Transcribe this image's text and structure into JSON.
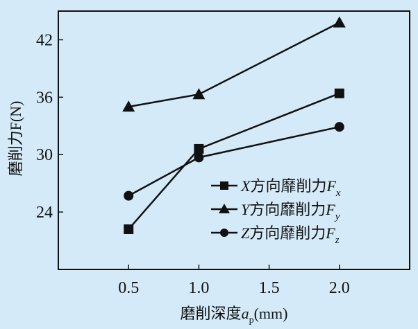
{
  "chart_data": {
    "type": "line",
    "xlabel": "磨削深度a_p(mm)",
    "xlabel_parts": {
      "main": "磨削深度",
      "var": "a",
      "sub": "p",
      "unit": "(mm)"
    },
    "ylabel": "磨削力F(N)",
    "ylabel_parts": {
      "main": "磨削力",
      "var": "F",
      "unit": "(N)"
    },
    "xlim": [
      0,
      2.5
    ],
    "ylim": [
      18,
      45
    ],
    "xticks": [
      "0.5",
      "1.0",
      "1.5",
      "2.0"
    ],
    "xtick_values": [
      0.5,
      1.0,
      1.5,
      2.0
    ],
    "yticks": [
      "24",
      "30",
      "36",
      "42"
    ],
    "ytick_values": [
      24,
      30,
      36,
      42
    ],
    "grid": false,
    "legend_position": "lower-right",
    "background_color": "#d4eaf8",
    "line_color": "#111111",
    "series": [
      {
        "name": "X方向靡削力F_x",
        "axis": "X",
        "label": "方向靡削力",
        "var": "F",
        "sub": "x",
        "marker": "square",
        "x": [
          0.5,
          1.0,
          2.0
        ],
        "values": [
          22.2,
          30.6,
          36.4
        ]
      },
      {
        "name": "Y方向靡削力F_y",
        "axis": "Y",
        "label": "方向靡削力",
        "var": "F",
        "sub": "y",
        "marker": "triangle",
        "x": [
          0.5,
          1.0,
          2.0
        ],
        "values": [
          35.0,
          36.3,
          43.8
        ]
      },
      {
        "name": "Z方向靡削力F_z",
        "axis": "Z",
        "label": "方向靡削力",
        "var": "F",
        "sub": "z",
        "marker": "circle",
        "x": [
          0.5,
          1.0,
          2.0
        ],
        "values": [
          25.7,
          29.7,
          32.9
        ]
      }
    ]
  }
}
